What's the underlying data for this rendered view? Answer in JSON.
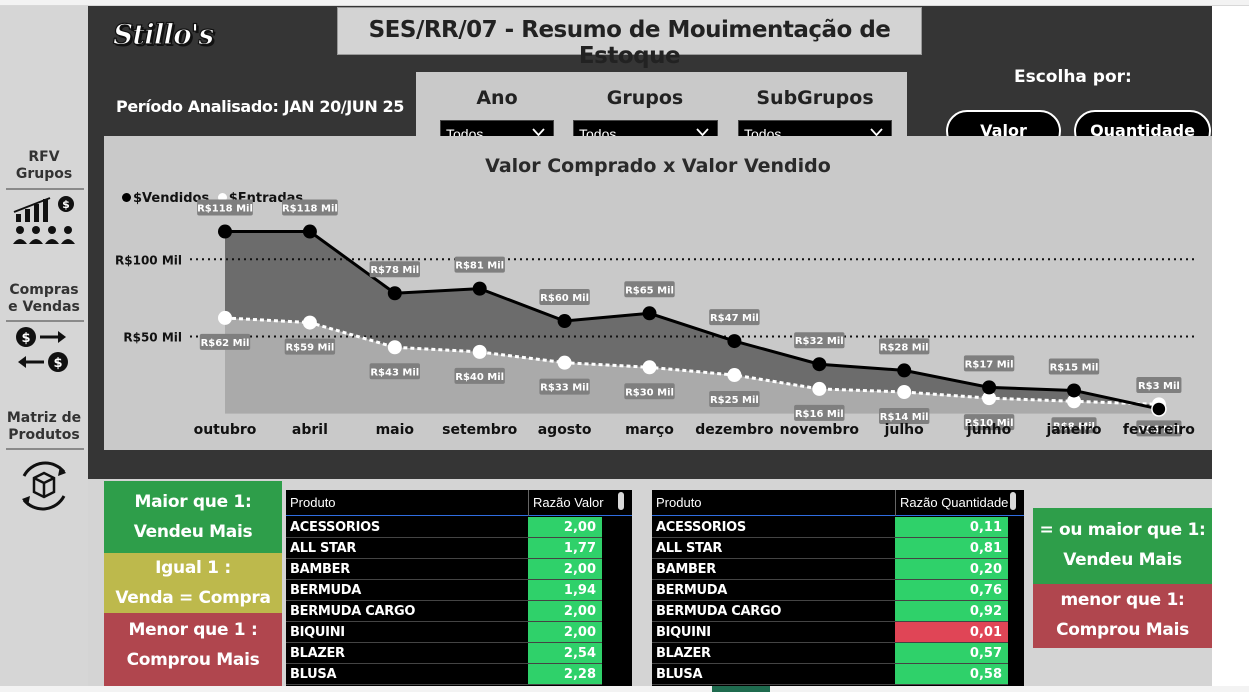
{
  "page": {
    "title": "SES/RR/07 - Resumo de Mouimentação de Estoque",
    "logo": "Stillo's",
    "period_label": "Período Analisado: JAN 20/JUN 25"
  },
  "nav": {
    "items": [
      {
        "label_line1": "RFV",
        "label_line2": "Grupos",
        "icon": "growth-chart-people-icon"
      },
      {
        "label_line1": "Compras",
        "label_line2": "e Vendas",
        "icon": "money-exchange-icon"
      },
      {
        "label_line1": "Matriz de",
        "label_line2": "Produtos",
        "icon": "product-box-cycle-icon"
      }
    ]
  },
  "filters": [
    {
      "label": "Ano",
      "value": "Todos"
    },
    {
      "label": "Grupos",
      "value": "Todos"
    },
    {
      "label": "SubGrupos",
      "value": "Todos"
    }
  ],
  "choose": {
    "label": "Escolha por:",
    "buttons": [
      "Valor",
      "Quantidade"
    ]
  },
  "colors": {
    "dashboard_bg": "#353535",
    "panel_gray": "#c9c9c9",
    "green": "#2e9e4a",
    "olive": "#bdb94c",
    "red": "#b0464e",
    "cell_green": "#2fd16a",
    "cell_red": "#e04556"
  },
  "chart_data": {
    "type": "line",
    "title": "Valor Comprado x Valor Vendido",
    "categories": [
      "outubro",
      "abril",
      "maio",
      "setembro",
      "agosto",
      "março",
      "dezembro",
      "novembro",
      "julho",
      "junho",
      "janeiro",
      "fevereiro"
    ],
    "series": [
      {
        "name": "$Vendidos",
        "values": [
          118,
          118,
          78,
          81,
          60,
          65,
          47,
          32,
          28,
          17,
          15,
          3
        ],
        "labels": [
          "R$118 Mil",
          "R$118 Mil",
          "R$78 Mil",
          "R$81 Mil",
          "R$60 Mil",
          "R$65 Mil",
          "R$47 Mil",
          "R$32 Mil",
          "R$28 Mil",
          "R$17 Mil",
          "R$15 Mil",
          "R$3 Mil"
        ],
        "color": "#000000"
      },
      {
        "name": "$Entradas",
        "values": [
          62,
          59,
          43,
          40,
          33,
          30,
          25,
          16,
          14,
          10,
          8,
          6
        ],
        "labels": [
          "R$62 Mil",
          "R$59 Mil",
          "R$43 Mil",
          "R$40 Mil",
          "R$33 Mil",
          "R$30 Mil",
          "R$25 Mil",
          "R$16 Mil",
          "R$14 Mil",
          "R$10 Mil",
          "R$8 Mil",
          "R$6 Mil"
        ],
        "color": "#ffffff"
      }
    ],
    "reference_lines": [
      {
        "value": 100,
        "label": "R$100 Mil"
      },
      {
        "value": 50,
        "label": "R$50 Mil"
      }
    ],
    "ylim": [
      0,
      130
    ],
    "legend_position": "top-left",
    "grid": false
  },
  "legend_boxes": {
    "left": [
      {
        "line1": "Maior que 1:",
        "line2": "Vendeu Mais",
        "color": "#2e9e4a"
      },
      {
        "line1": "Igual 1 :",
        "line2": "Venda = Compra",
        "color": "#bdb94c"
      },
      {
        "line1": "Menor que 1 :",
        "line2": "Comprou Mais",
        "color": "#b0464e"
      }
    ],
    "right": [
      {
        "line1": "= ou maior que 1:",
        "line2": "Vendeu Mais",
        "color": "#2e9e4a"
      },
      {
        "line1": "menor que 1:",
        "line2": "Comprou Mais",
        "color": "#b0464e"
      }
    ]
  },
  "table_valor": {
    "headers": [
      "Produto",
      "Razão Valor"
    ],
    "rows": [
      {
        "name": "ACESSORIOS",
        "value": "2,00",
        "status": "green"
      },
      {
        "name": "ALL STAR",
        "value": "1,77",
        "status": "green"
      },
      {
        "name": "BAMBER",
        "value": "2,00",
        "status": "green"
      },
      {
        "name": "BERMUDA",
        "value": "1,94",
        "status": "green"
      },
      {
        "name": "BERMUDA CARGO",
        "value": "2,00",
        "status": "green"
      },
      {
        "name": "BIQUINI",
        "value": "2,00",
        "status": "green"
      },
      {
        "name": "BLAZER",
        "value": "2,54",
        "status": "green"
      },
      {
        "name": "BLUSA",
        "value": "2,28",
        "status": "green"
      }
    ]
  },
  "table_quantidade": {
    "headers": [
      "Produto",
      "Razão Quantidade"
    ],
    "rows": [
      {
        "name": "ACESSORIOS",
        "value": "0,11",
        "status": "green"
      },
      {
        "name": "ALL STAR",
        "value": "0,81",
        "status": "green"
      },
      {
        "name": "BAMBER",
        "value": "0,20",
        "status": "green"
      },
      {
        "name": "BERMUDA",
        "value": "0,76",
        "status": "green"
      },
      {
        "name": "BERMUDA CARGO",
        "value": "0,92",
        "status": "green"
      },
      {
        "name": "BIQUINI",
        "value": "0,01",
        "status": "red"
      },
      {
        "name": "BLAZER",
        "value": "0,57",
        "status": "green"
      },
      {
        "name": "BLUSA",
        "value": "0,58",
        "status": "green"
      }
    ]
  }
}
